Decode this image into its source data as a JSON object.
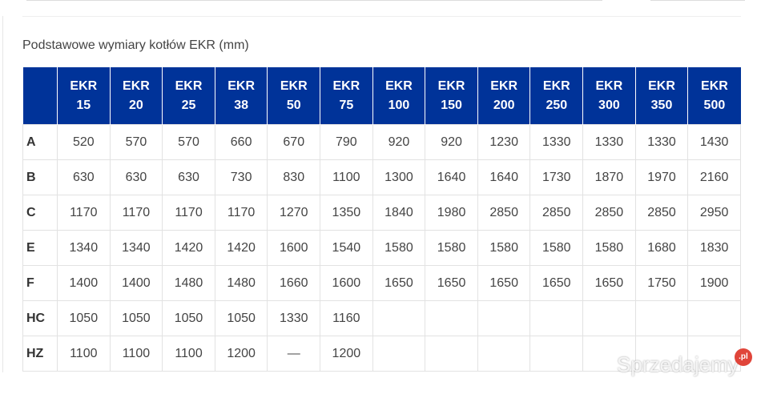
{
  "title": "Podstawowe wymiary kotłów EKR (mm)",
  "columns": [
    [
      "EKR",
      "15"
    ],
    [
      "EKR",
      "20"
    ],
    [
      "EKR",
      "25"
    ],
    [
      "EKR",
      "38"
    ],
    [
      "EKR",
      "50"
    ],
    [
      "EKR",
      "75"
    ],
    [
      "EKR",
      "100"
    ],
    [
      "EKR",
      "150"
    ],
    [
      "EKR",
      "200"
    ],
    [
      "EKR",
      "250"
    ],
    [
      "EKR",
      "300"
    ],
    [
      "EKR",
      "350"
    ],
    [
      "EKR",
      "500"
    ]
  ],
  "rows": [
    {
      "label": "A",
      "values": [
        "520",
        "570",
        "570",
        "660",
        "670",
        "790",
        "920",
        "920",
        "1230",
        "1330",
        "1330",
        "1330",
        "1430"
      ]
    },
    {
      "label": "B",
      "values": [
        "630",
        "630",
        "630",
        "730",
        "830",
        "1100",
        "1300",
        "1640",
        "1640",
        "1730",
        "1870",
        "1970",
        "2160"
      ]
    },
    {
      "label": "C",
      "values": [
        "1170",
        "1170",
        "1170",
        "1170",
        "1270",
        "1350",
        "1840",
        "1980",
        "2850",
        "2850",
        "2850",
        "2850",
        "2950"
      ]
    },
    {
      "label": "E",
      "values": [
        "1340",
        "1340",
        "1420",
        "1420",
        "1600",
        "1540",
        "1580",
        "1580",
        "1580",
        "1580",
        "1580",
        "1680",
        "1830"
      ]
    },
    {
      "label": "F",
      "values": [
        "1400",
        "1400",
        "1480",
        "1480",
        "1660",
        "1600",
        "1650",
        "1650",
        "1650",
        "1650",
        "1650",
        "1750",
        "1900"
      ]
    },
    {
      "label": "HC",
      "values": [
        "1050",
        "1050",
        "1050",
        "1050",
        "1330",
        "1160",
        "",
        "",
        "",
        "",
        "",
        "",
        ""
      ]
    },
    {
      "label": "HZ",
      "values": [
        "1100",
        "1100",
        "1100",
        "1200",
        "—",
        "1200",
        "",
        "",
        "",
        "",
        "",
        "",
        ""
      ]
    }
  ],
  "watermark": {
    "text": "Sprzedajemy",
    "badge": ".pl"
  },
  "colors": {
    "header_bg": "#003399",
    "header_text": "#ffffff",
    "badge": "#e0453a"
  }
}
